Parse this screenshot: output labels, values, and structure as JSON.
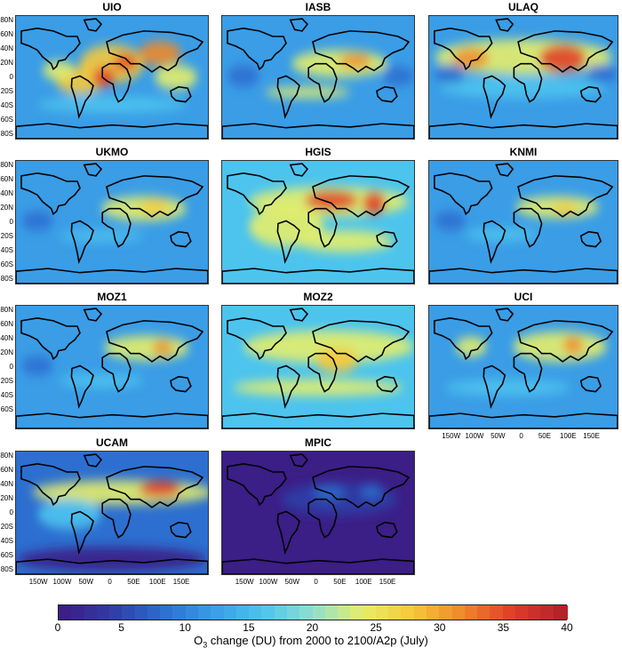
{
  "panels": [
    {
      "title": "UIO"
    },
    {
      "title": "IASB"
    },
    {
      "title": "ULAQ"
    },
    {
      "title": "UKMO"
    },
    {
      "title": "HGIS"
    },
    {
      "title": "KNMI"
    },
    {
      "title": "MOZ1"
    },
    {
      "title": "MOZ2"
    },
    {
      "title": "UCI"
    },
    {
      "title": "UCAM"
    },
    {
      "title": "MPIC"
    }
  ],
  "lat_labels": [
    "80N",
    "60N",
    "40N",
    "20N",
    "0",
    "20S",
    "40S",
    "60S",
    "80S"
  ],
  "lat_labels_moz1": [
    "80N",
    "60N",
    "40N",
    "20N",
    "0",
    "20S",
    "40S",
    "60S"
  ],
  "lon_labels": [
    "150W",
    "100W",
    "50W",
    "0",
    "50E",
    "100E",
    "150E"
  ],
  "colorbar": {
    "ticks": [
      "0",
      "5",
      "10",
      "15",
      "20",
      "25",
      "30",
      "35",
      "40"
    ],
    "title_prefix": "O",
    "title_sub": "3",
    "title_suffix": " change (DU) from 2000 to 2100/A2p (July)",
    "stops": [
      "#3b1e86",
      "#2f3fa6",
      "#2c6fd0",
      "#3a9de6",
      "#4cc4ee",
      "#8fdfcf",
      "#e6ee6a",
      "#f6c93a",
      "#f08a2a",
      "#e0402a",
      "#b5222a"
    ]
  }
}
